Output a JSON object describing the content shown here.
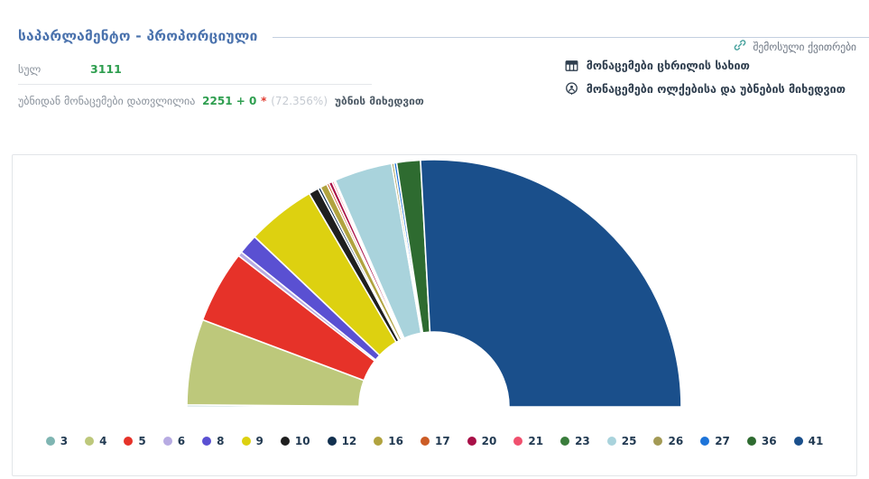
{
  "header": {
    "title": "საპარლამენტო - პროპორციული",
    "receipts_link": "შემოსული ქვითრები"
  },
  "stats": {
    "total_label": "სულ",
    "total_value": "3111",
    "counted_label": "უბნიდან მონაცემები დათვლილია",
    "counted_value": "2251 + 0",
    "asterisk": "*",
    "counted_percent": "(72.356%)",
    "by_precinct_label": "უბნის მიხედვით"
  },
  "links": {
    "table_view": "მონაცემები ცხრილის სახით",
    "districts_view": "მონაცემები ოლქებისა და უბნების მიხედვით"
  },
  "colors": {
    "accent_blue": "#4a72ad",
    "green": "#2e9e4f",
    "red_asterisk": "#e03a2f",
    "link_teal": "#4aa39f",
    "dark_text": "#2f3e4e"
  },
  "chart_data": {
    "type": "pie",
    "variant": "half-donut",
    "start_angle_deg": 180,
    "end_angle_deg": 0,
    "legend_position": "bottom",
    "note": "legend labels are party ballot numbers; percents estimated from arc angles",
    "parties": [
      {
        "number": "3",
        "color": "#7fb5b2",
        "percent": 0.25
      },
      {
        "number": "4",
        "color": "#bdc87b",
        "percent": 11.2
      },
      {
        "number": "5",
        "color": "#e63229",
        "percent": 9.5
      },
      {
        "number": "6",
        "color": "#b7abe2",
        "percent": 0.6
      },
      {
        "number": "8",
        "color": "#5a50d2",
        "percent": 2.6
      },
      {
        "number": "9",
        "color": "#ddd110",
        "percent": 9.0
      },
      {
        "number": "10",
        "color": "#1f1f1f",
        "percent": 1.3
      },
      {
        "number": "12",
        "color": "#12304f",
        "percent": 0.35
      },
      {
        "number": "16",
        "color": "#b1a33f",
        "percent": 0.9
      },
      {
        "number": "17",
        "color": "#cc5c26",
        "percent": 0.3
      },
      {
        "number": "20",
        "color": "#a80f47",
        "percent": 0.45
      },
      {
        "number": "21",
        "color": "#f0506e",
        "percent": 0.25
      },
      {
        "number": "23",
        "color": "#3a7d3c",
        "percent": 0.2
      },
      {
        "number": "25",
        "color": "#a9d3dc",
        "percent": 7.6
      },
      {
        "number": "26",
        "color": "#a39a55",
        "percent": 0.3
      },
      {
        "number": "27",
        "color": "#1d74d9",
        "percent": 0.35
      },
      {
        "number": "36",
        "color": "#2e6b30",
        "percent": 3.1
      },
      {
        "number": "41",
        "color": "#1a4f8b",
        "percent": 51.75
      }
    ]
  }
}
